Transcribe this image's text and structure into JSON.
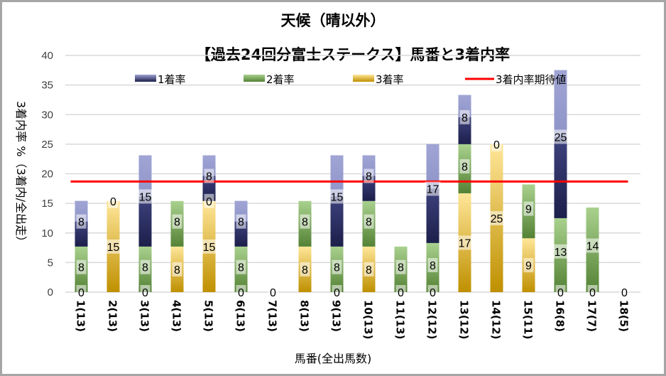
{
  "chart_data": {
    "type": "bar",
    "stacked": true,
    "title": "天候（晴以外）",
    "subtitle": "【過去24回分富士ステークス】馬番と3着内率",
    "xlabel": "馬番(全出馬数)",
    "ylabel": "3着内率 %（3着内/全出走）",
    "ylim": [
      0,
      40
    ],
    "yticks": [
      0,
      5,
      10,
      15,
      20,
      25,
      30,
      35,
      40
    ],
    "grid": true,
    "legend_position": "top",
    "categories": [
      "1(13)",
      "2(13)",
      "3(13)",
      "4(13)",
      "5(13)",
      "6(13)",
      "7(13)",
      "8(13)",
      "9(13)",
      "10(13)",
      "11(13)",
      "12(12)",
      "13(12)",
      "14(12)",
      "15(11)",
      "16(8)",
      "17(7)",
      "18(5)"
    ],
    "series": [
      {
        "name": "3着率",
        "color": "#BF9000",
        "color_light": "#FFE699",
        "values": [
          0,
          15.4,
          0,
          7.7,
          15.4,
          0,
          0,
          7.7,
          0,
          7.7,
          0,
          0,
          16.7,
          25,
          9.1,
          0,
          0,
          0
        ],
        "labels": [
          "0",
          "15",
          "0",
          "8",
          "15",
          "0",
          "0",
          "8",
          "0",
          "8",
          "0",
          "0",
          "17",
          "25",
          "9",
          "0",
          "0",
          "0"
        ]
      },
      {
        "name": "2着率",
        "color": "#548235",
        "color_light": "#A9D18E",
        "values": [
          7.7,
          0,
          7.7,
          7.7,
          0,
          7.7,
          0,
          7.7,
          7.7,
          7.7,
          7.7,
          8.3,
          8.3,
          0,
          9.1,
          12.5,
          14.3,
          0
        ],
        "labels": [
          "8",
          "0",
          "8",
          "8",
          "0",
          "8",
          "",
          "8",
          "8",
          "8",
          "8",
          "8",
          "8",
          "0",
          "9",
          "13",
          "14",
          ""
        ]
      },
      {
        "name": "1着率",
        "color": "#1C1F4A",
        "color_light": "#9FA3D4",
        "values": [
          7.7,
          0,
          15.4,
          0,
          7.7,
          7.7,
          0,
          0,
          15.4,
          7.7,
          0,
          16.7,
          8.3,
          0,
          0,
          25,
          0,
          0
        ],
        "labels": [
          "8",
          "",
          "15",
          "",
          "8",
          "8",
          "",
          "",
          "15",
          "8",
          "",
          "17",
          "8",
          "",
          "",
          "25",
          "",
          ""
        ]
      }
    ],
    "reference_line": {
      "name": "3着内率期待値",
      "value": 18.7,
      "color": "#FF0000"
    },
    "legend": [
      "1着率",
      "2着率",
      "3着率",
      "3着内率期待値"
    ]
  }
}
